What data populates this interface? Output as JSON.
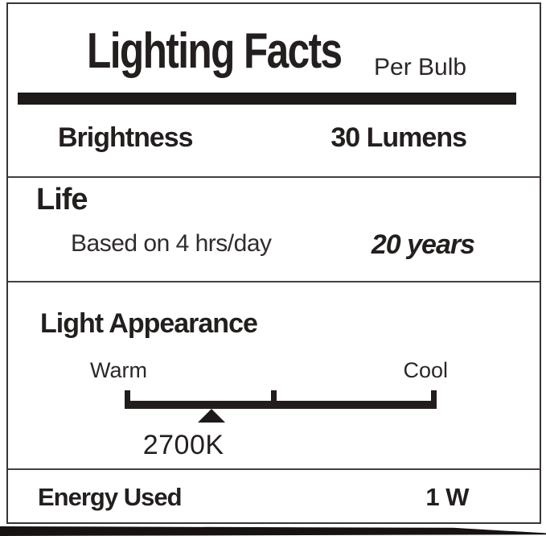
{
  "lighting_facts": {
    "title": "Lighting Facts",
    "per_unit": "Per Bulb",
    "brightness": {
      "label": "Brightness",
      "value": "30 Lumens"
    },
    "life": {
      "label": "Life",
      "basis": "Based on 4 hrs/day",
      "value": "20 years"
    },
    "light_appearance": {
      "label": "Light Appearance",
      "warm": "Warm",
      "cool": "Cool",
      "color_temperature": "2700K",
      "marker_position_pct": 27.8
    },
    "energy_used": {
      "label": "Energy Used",
      "value": "1 W"
    },
    "colors": {
      "ink": "#231f1e",
      "background": "#ffffff"
    }
  }
}
